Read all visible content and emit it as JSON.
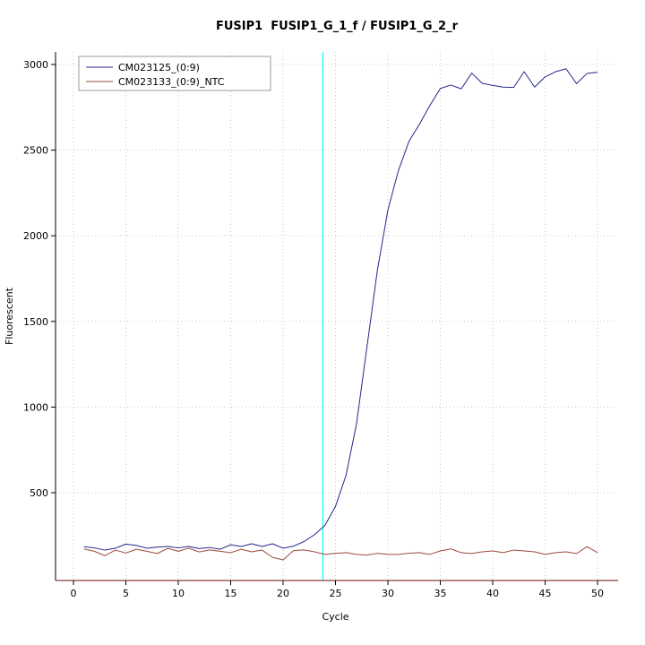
{
  "title": "FUSIP1  FUSIP1_G_1_f / FUSIP1_G_2_r",
  "chart_data": {
    "type": "line",
    "title": "FUSIP1  FUSIP1_G_1_f / FUSIP1_G_2_r",
    "xlabel": "Cycle",
    "ylabel": "Fluorescent",
    "xlim": [
      0,
      51
    ],
    "ylim": [
      0,
      3100
    ],
    "xticks": [
      0,
      5,
      10,
      15,
      20,
      25,
      30,
      35,
      40,
      45,
      50
    ],
    "yticks": [
      500,
      1000,
      1500,
      2000,
      2500,
      3000
    ],
    "grid": true,
    "grid_color": "#c8c8c8",
    "legend_position": "top-left",
    "threshold_cycle_line": {
      "x": 23.8,
      "color": "#00FFFF"
    },
    "baseline_axis_color": "#8b3a3a",
    "axis_color": "#000000",
    "series": [
      {
        "name": "CM023125_(0:9)",
        "color": "#26268c",
        "x_start": 1,
        "values": [
          185,
          178,
          165,
          176,
          200,
          192,
          176,
          182,
          186,
          178,
          186,
          174,
          180,
          170,
          196,
          186,
          202,
          186,
          202,
          176,
          188,
          215,
          255,
          310,
          420,
          600,
          900,
          1350,
          1800,
          2150,
          2380,
          2550,
          2650,
          2760,
          2860,
          2880,
          2858,
          2950,
          2890,
          2878,
          2868,
          2866,
          2958,
          2868,
          2928,
          2958,
          2975,
          2888,
          2948,
          2955
        ]
      },
      {
        "name": "CM023133_(0:9)_NTC",
        "color": "#9b4a3a",
        "x_start": 1,
        "values": [
          172,
          158,
          132,
          165,
          148,
          170,
          158,
          145,
          175,
          158,
          176,
          154,
          166,
          158,
          150,
          170,
          155,
          165,
          122,
          108,
          162,
          166,
          155,
          140,
          146,
          150,
          140,
          136,
          146,
          140,
          140,
          146,
          150,
          140,
          160,
          172,
          150,
          145,
          155,
          160,
          150,
          165,
          160,
          155,
          140,
          150,
          155,
          145,
          185,
          150
        ]
      }
    ]
  }
}
